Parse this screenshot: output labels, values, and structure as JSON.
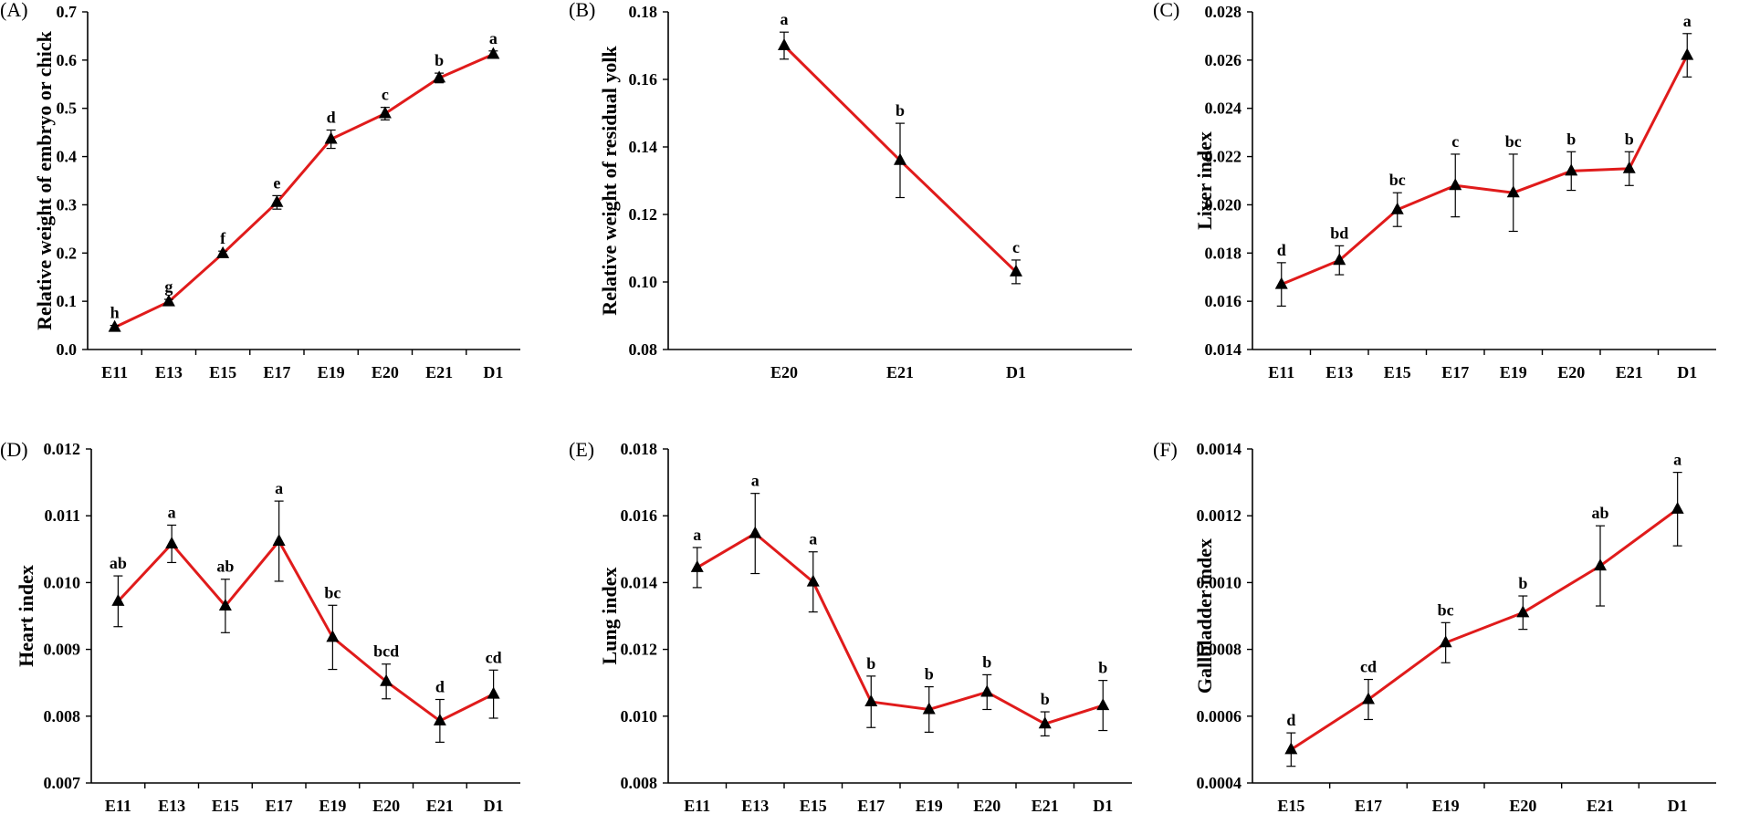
{
  "colors": {
    "line": "#e01b1b",
    "marker": "#000000",
    "axis": "#000000"
  },
  "chart_data": [
    {
      "panel": "(A)",
      "type": "line",
      "ylabel": "Relative weight of embryo or chick",
      "xlabel": "",
      "ylim": [
        0,
        0.7
      ],
      "ytick_step": 0.1,
      "ytick_decimals": 1,
      "categories": [
        "E11",
        "E13",
        "E15",
        "E17",
        "E19",
        "E20",
        "E21",
        "D1"
      ],
      "values": [
        0.046,
        0.099,
        0.199,
        0.305,
        0.436,
        0.489,
        0.563,
        0.612
      ],
      "errors": [
        0.004,
        0.005,
        0.005,
        0.014,
        0.019,
        0.013,
        0.01,
        0.007
      ],
      "significance": [
        "h",
        "g",
        "f",
        "e",
        "d",
        "c",
        "b",
        "a"
      ]
    },
    {
      "panel": "(B)",
      "type": "line",
      "ylabel": "Relative weight of residual yolk",
      "xlabel": "",
      "ylim": [
        0.08,
        0.18
      ],
      "ytick_step": 0.02,
      "ytick_decimals": 2,
      "categories": [
        "E20",
        "E21",
        "D1"
      ],
      "values": [
        0.17,
        0.136,
        0.103
      ],
      "errors": [
        0.004,
        0.011,
        0.0035
      ],
      "significance": [
        "a",
        "b",
        "c"
      ]
    },
    {
      "panel": "(C)",
      "type": "line",
      "ylabel": "Liver index",
      "xlabel": "",
      "ylim": [
        0.014,
        0.028
      ],
      "ytick_step": 0.002,
      "ytick_decimals": 3,
      "categories": [
        "E11",
        "E13",
        "E15",
        "E17",
        "E19",
        "E20",
        "E21",
        "D1"
      ],
      "values": [
        0.0167,
        0.0177,
        0.0198,
        0.0208,
        0.0205,
        0.0214,
        0.0215,
        0.0262
      ],
      "errors": [
        0.0009,
        0.0006,
        0.0007,
        0.0013,
        0.0016,
        0.0008,
        0.0007,
        0.0009
      ],
      "significance": [
        "d",
        "bd",
        "bc",
        "c",
        "bc",
        "b",
        "b",
        "a"
      ]
    },
    {
      "panel": "(D)",
      "type": "line",
      "ylabel": "Heart index",
      "xlabel": "",
      "ylim": [
        0.007,
        0.012
      ],
      "ytick_step": 0.001,
      "ytick_decimals": 3,
      "categories": [
        "E11",
        "E13",
        "E15",
        "E17",
        "E19",
        "E20",
        "E21",
        "D1"
      ],
      "values": [
        0.00972,
        0.01058,
        0.00965,
        0.01062,
        0.00918,
        0.00852,
        0.00793,
        0.00833
      ],
      "errors": [
        0.00038,
        0.00028,
        0.0004,
        0.0006,
        0.00048,
        0.00026,
        0.00032,
        0.00036
      ],
      "significance": [
        "ab",
        "a",
        "ab",
        "a",
        "bc",
        "bcd",
        "d",
        "cd"
      ]
    },
    {
      "panel": "(E)",
      "type": "line",
      "ylabel": "Lung index",
      "xlabel": "",
      "ylim": [
        0.008,
        0.018
      ],
      "ytick_step": 0.002,
      "ytick_decimals": 3,
      "categories": [
        "E11",
        "E13",
        "E15",
        "E17",
        "E19",
        "E20",
        "E21",
        "D1"
      ],
      "values": [
        0.01445,
        0.01547,
        0.01402,
        0.01043,
        0.0102,
        0.01072,
        0.00977,
        0.01032
      ],
      "errors": [
        0.0006,
        0.0012,
        0.0009,
        0.00077,
        0.00068,
        0.00052,
        0.00036,
        0.00075
      ],
      "significance": [
        "a",
        "a",
        "a",
        "b",
        "b",
        "b",
        "b",
        "b"
      ]
    },
    {
      "panel": "(F)",
      "type": "line",
      "ylabel": "Gallbladder index",
      "xlabel": "",
      "ylim": [
        0.0004,
        0.0014
      ],
      "ytick_step": 0.0002,
      "ytick_decimals": 4,
      "categories": [
        "E15",
        "E17",
        "E19",
        "E20",
        "E21",
        "D1"
      ],
      "values": [
        0.0005,
        0.00065,
        0.00082,
        0.00091,
        0.00105,
        0.00122
      ],
      "errors": [
        5e-05,
        6e-05,
        6e-05,
        5e-05,
        0.00012,
        0.00011
      ],
      "significance": [
        "d",
        "cd",
        "bc",
        "b",
        "ab",
        "a"
      ]
    }
  ]
}
